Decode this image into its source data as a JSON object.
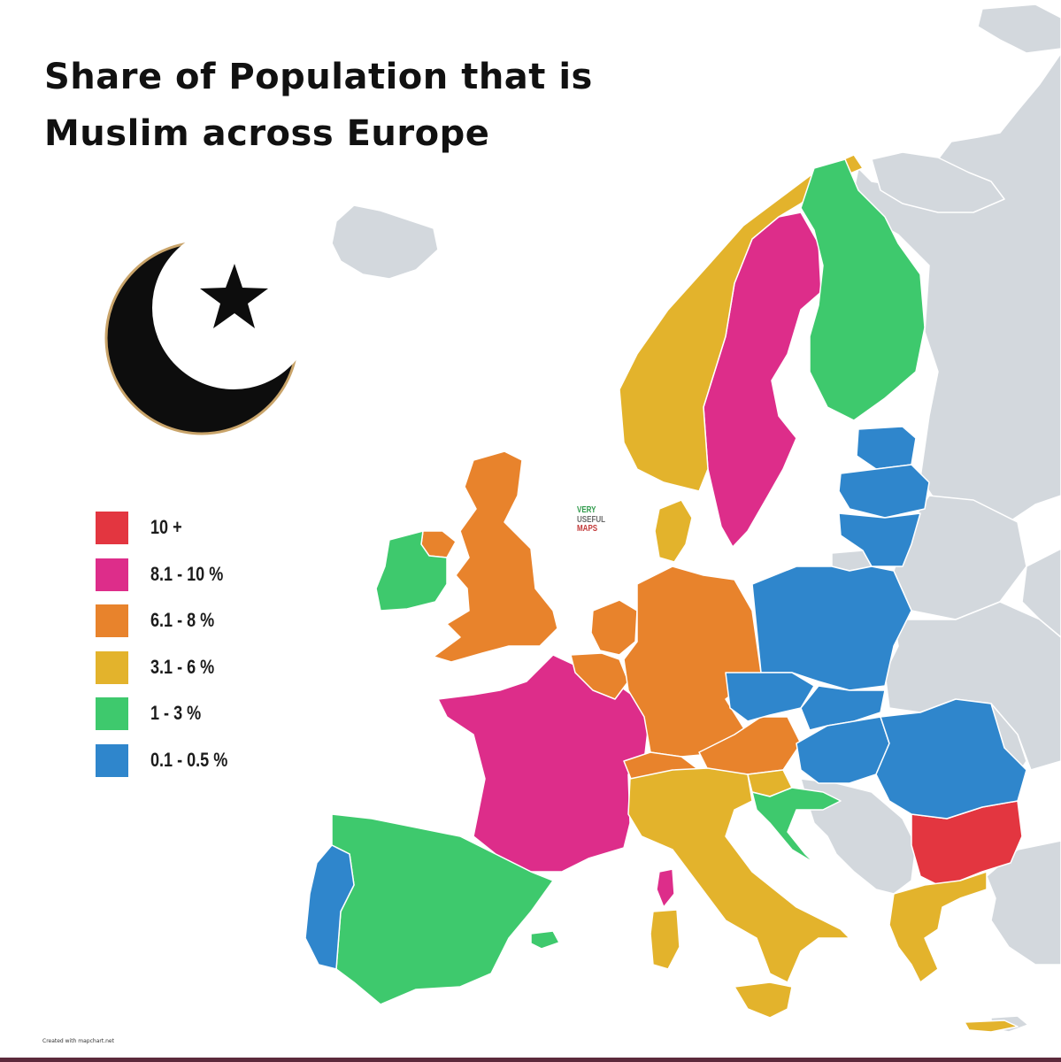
{
  "title": {
    "line1": "Share of Population that is",
    "line2": "Muslim across Europe"
  },
  "symbol": {
    "icon": "crescent-star-icon",
    "color": "#0d0d0d",
    "outline": "#c9a46a"
  },
  "legend": [
    {
      "label": "10 +",
      "color": "#e33640"
    },
    {
      "label": "8.1 - 10 %",
      "color": "#dd2d8a"
    },
    {
      "label": "6.1 - 8 %",
      "color": "#e8832c"
    },
    {
      "label": "3.1 - 6 %",
      "color": "#e3b32c"
    },
    {
      "label": "1 - 3 %",
      "color": "#3ec96d"
    },
    {
      "label": "0.1 - 0.5 %",
      "color": "#2f86cc"
    }
  ],
  "other_color": "#d3d8dd",
  "watermark": {
    "line1": "VERY",
    "line2": "USEFUL",
    "line3": "MAPS",
    "colors": [
      "#2e9a4a",
      "#6b6b6b",
      "#c23a3a"
    ]
  },
  "credit": "Created with mapchart.net",
  "countries": {
    "bulgaria": "10 +",
    "sweden": "8.1 - 10 %",
    "france": "8.1 - 10 %",
    "corsica": "8.1 - 10 %",
    "united_kingdom": "6.1 - 8 %",
    "netherlands": "6.1 - 8 %",
    "belgium": "6.1 - 8 %",
    "germany": "6.1 - 8 %",
    "switzerland": "6.1 - 8 %",
    "austria": "6.1 - 8 %",
    "northern_ireland": "6.1 - 8 %",
    "norway": "3.1 - 6 %",
    "denmark": "3.1 - 6 %",
    "italy": "3.1 - 6 %",
    "greece": "3.1 - 6 %",
    "slovenia": "3.1 - 6 %",
    "ireland": "1 - 3 %",
    "finland": "1 - 3 %",
    "spain": "1 - 3 %",
    "croatia": "1 - 3 %",
    "portugal": "0.1 - 0.5 %",
    "estonia": "0.1 - 0.5 %",
    "latvia": "0.1 - 0.5 %",
    "lithuania": "0.1 - 0.5 %",
    "poland": "0.1 - 0.5 %",
    "czechia": "0.1 - 0.5 %",
    "slovakia": "0.1 - 0.5 %",
    "hungary": "0.1 - 0.5 %",
    "romania": "0.1 - 0.5 %"
  }
}
